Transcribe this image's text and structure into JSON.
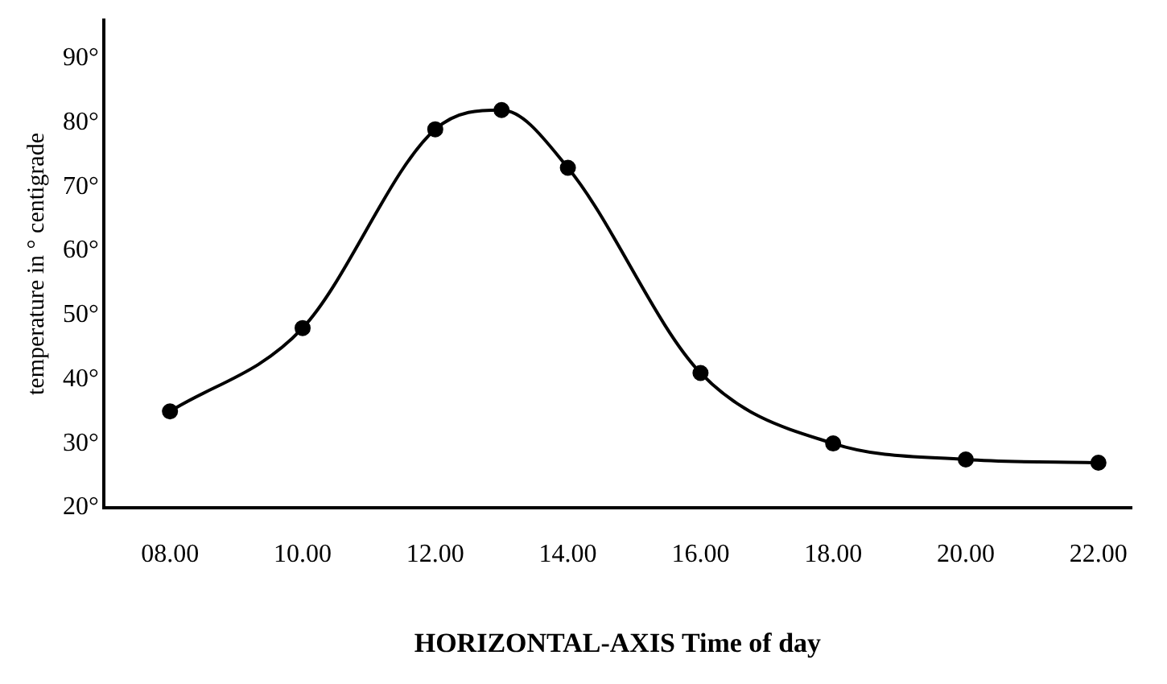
{
  "chart_data": {
    "type": "line",
    "xlabel": "HORIZONTAL-AXIS Time of day",
    "ylabel": "temperature in ° centigrade",
    "x": [
      8,
      10,
      12,
      13,
      14,
      16,
      18,
      20,
      22
    ],
    "series": [
      {
        "color": "#000000",
        "values": [
          35,
          48,
          79,
          82,
          73,
          41,
          30,
          27.5,
          27
        ]
      }
    ],
    "xlim": [
      7,
      22.5
    ],
    "xticks": [
      {
        "value": 8,
        "label": "08.00"
      },
      {
        "value": 10,
        "label": "10.00"
      },
      {
        "value": 12,
        "label": "12.00"
      },
      {
        "value": 14,
        "label": "14.00"
      },
      {
        "value": 16,
        "label": "16.00"
      },
      {
        "value": 18,
        "label": "18.00"
      },
      {
        "value": 20,
        "label": "20.00"
      },
      {
        "value": 22,
        "label": "22.00"
      }
    ],
    "ylim": [
      20,
      96
    ],
    "yticks": [
      {
        "value": 20,
        "label": "20°"
      },
      {
        "value": 30,
        "label": "30°"
      },
      {
        "value": 40,
        "label": "40°"
      },
      {
        "value": 50,
        "label": "50°"
      },
      {
        "value": 60,
        "label": "60°"
      },
      {
        "value": 70,
        "label": "70°"
      },
      {
        "value": 80,
        "label": "80°"
      },
      {
        "value": 90,
        "label": "90°"
      }
    ],
    "grid": false,
    "legend": false,
    "marker": "circle",
    "line_style": "solid"
  }
}
